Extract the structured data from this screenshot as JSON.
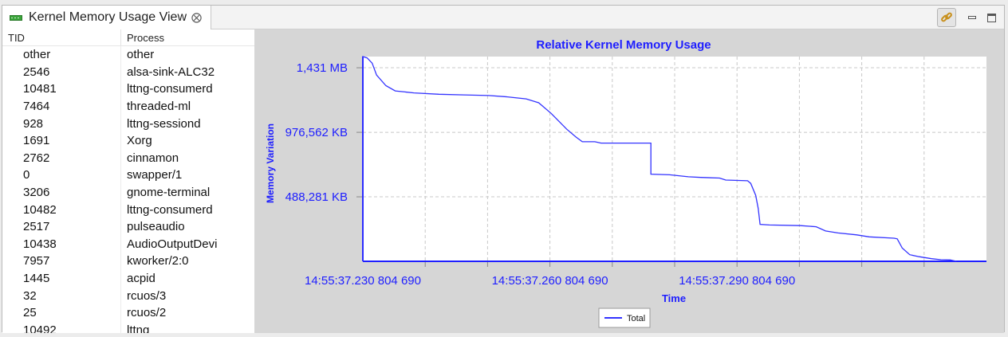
{
  "view": {
    "title": "Kernel Memory Usage View",
    "close_icon": "close-x-icon",
    "toolbar": {
      "link_icon": "link-chain-icon",
      "minimize_icon": "minimize-icon",
      "maximize_icon": "maximize-icon"
    }
  },
  "table": {
    "columns": [
      "TID",
      "Process"
    ],
    "rows": [
      {
        "tid": "other",
        "process": "other"
      },
      {
        "tid": "2546",
        "process": "alsa-sink-ALC32"
      },
      {
        "tid": "10481",
        "process": "lttng-consumerd"
      },
      {
        "tid": "7464",
        "process": "threaded-ml"
      },
      {
        "tid": "928",
        "process": "lttng-sessiond"
      },
      {
        "tid": "1691",
        "process": "Xorg"
      },
      {
        "tid": "2762",
        "process": "cinnamon"
      },
      {
        "tid": "0",
        "process": "swapper/1"
      },
      {
        "tid": "3206",
        "process": "gnome-terminal"
      },
      {
        "tid": "10482",
        "process": "lttng-consumerd"
      },
      {
        "tid": "2517",
        "process": "pulseaudio"
      },
      {
        "tid": "10438",
        "process": "AudioOutputDevi"
      },
      {
        "tid": "7957",
        "process": "kworker/2:0"
      },
      {
        "tid": "1445",
        "process": "acpid"
      },
      {
        "tid": "32",
        "process": "rcuos/3"
      },
      {
        "tid": "25",
        "process": "rcuos/2"
      },
      {
        "tid": "10492",
        "process": "lttng"
      }
    ]
  },
  "chart_data": {
    "type": "line",
    "title": "Relative Kernel Memory Usage",
    "xlabel": "Time",
    "ylabel": "Memory Variation",
    "yticks": [
      "1,431 MB",
      "976,562 KB",
      "488,281 KB"
    ],
    "ytick_values_kb": [
      1465368,
      976562,
      488281
    ],
    "ylim_kb": [
      0,
      1550000
    ],
    "xticks": [
      "14:55:37.230 804 690",
      "14:55:37.260 804 690",
      "14:55:37.290 804 690"
    ],
    "xtick_values_ms": [
      230.80469,
      260.80469,
      290.80469
    ],
    "xlim_ms": [
      230.80469,
      330.80469
    ],
    "grid": true,
    "legend_position": "bottom",
    "series": [
      {
        "name": "Total",
        "color": "#3333ff",
        "points": [
          [
            230.8,
            0
          ],
          [
            230.8,
            1550000
          ],
          [
            231.5,
            1540000
          ],
          [
            232.3,
            1500000
          ],
          [
            233.0,
            1410000
          ],
          [
            234.5,
            1330000
          ],
          [
            236.0,
            1290000
          ],
          [
            239.0,
            1275000
          ],
          [
            243.0,
            1265000
          ],
          [
            247.0,
            1260000
          ],
          [
            251.0,
            1255000
          ],
          [
            254.0,
            1245000
          ],
          [
            257.0,
            1230000
          ],
          [
            259.0,
            1200000
          ],
          [
            261.0,
            1120000
          ],
          [
            263.5,
            1000000
          ],
          [
            265.0,
            940000
          ],
          [
            266.0,
            905000
          ],
          [
            268.0,
            905000
          ],
          [
            269.0,
            895000
          ],
          [
            275.5,
            895000
          ],
          [
            277.0,
            895000
          ],
          [
            277.0,
            660000
          ],
          [
            280.0,
            655000
          ],
          [
            283.0,
            640000
          ],
          [
            285.0,
            635000
          ],
          [
            288.0,
            630000
          ],
          [
            289.0,
            615000
          ],
          [
            292.5,
            610000
          ],
          [
            293.0,
            590000
          ],
          [
            293.8,
            500000
          ],
          [
            294.2,
            400000
          ],
          [
            294.5,
            280000
          ],
          [
            296.0,
            275000
          ],
          [
            301.0,
            270000
          ],
          [
            303.5,
            262000
          ],
          [
            305.0,
            230000
          ],
          [
            307.0,
            215000
          ],
          [
            310.0,
            200000
          ],
          [
            312.0,
            185000
          ],
          [
            316.0,
            175000
          ],
          [
            316.5,
            170000
          ],
          [
            317.3,
            100000
          ],
          [
            318.5,
            50000
          ],
          [
            320.0,
            35000
          ],
          [
            322.0,
            20000
          ],
          [
            323.5,
            12000
          ],
          [
            325.0,
            10000
          ],
          [
            326.0,
            0
          ]
        ]
      }
    ]
  }
}
